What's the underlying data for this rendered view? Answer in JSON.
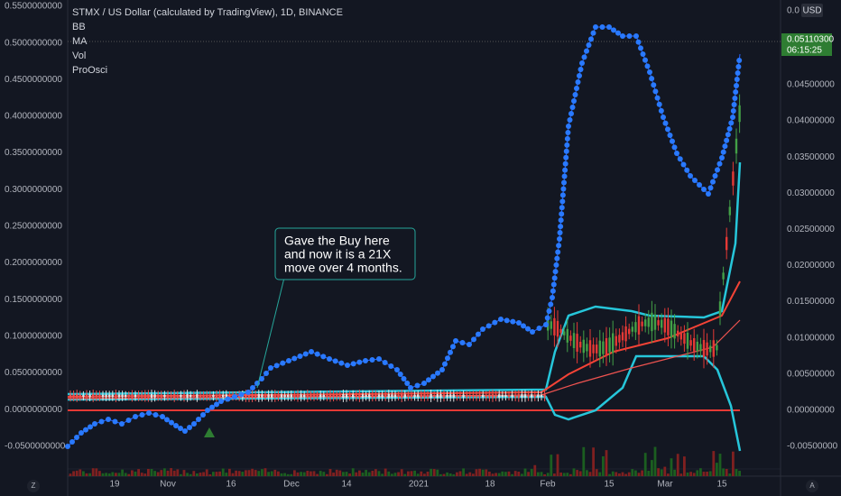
{
  "header": {
    "symbol": "STMX / US Dollar (calculated by TradingView), 1D, BINANCE",
    "indicators": [
      "BB",
      "MA",
      "Vol",
      "ProOsci"
    ]
  },
  "left_axis": {
    "labels": [
      "0.5500000000",
      "0.5000000000",
      "0.4500000000",
      "0.4000000000",
      "0.3500000000",
      "0.3000000000",
      "0.2500000000",
      "0.2000000000",
      "0.1500000000",
      "0.1000000000",
      "0.0500000000",
      "0.0000000000",
      "-0.0500000000"
    ]
  },
  "right_axis": {
    "top_label": "0.0",
    "currency": "USD",
    "labels": [
      "0.04500000",
      "0.04000000",
      "0.03500000",
      "0.03000000",
      "0.02500000",
      "0.02000000",
      "0.01500000",
      "0.01000000",
      "0.00500000",
      "0.00000000",
      "-0.00500000"
    ],
    "price": "0.05110300",
    "countdown": "06:15:25"
  },
  "time_axis": {
    "labels": [
      "19",
      "Nov",
      "16",
      "Dec",
      "14",
      "2021",
      "18",
      "Feb",
      "15",
      "Mar",
      "15"
    ],
    "left_button": "Z",
    "right_button": "A"
  },
  "annotation": {
    "lines": [
      "Gave the Buy here",
      "and now it is a 21X",
      "move over 4 months."
    ]
  }
}
